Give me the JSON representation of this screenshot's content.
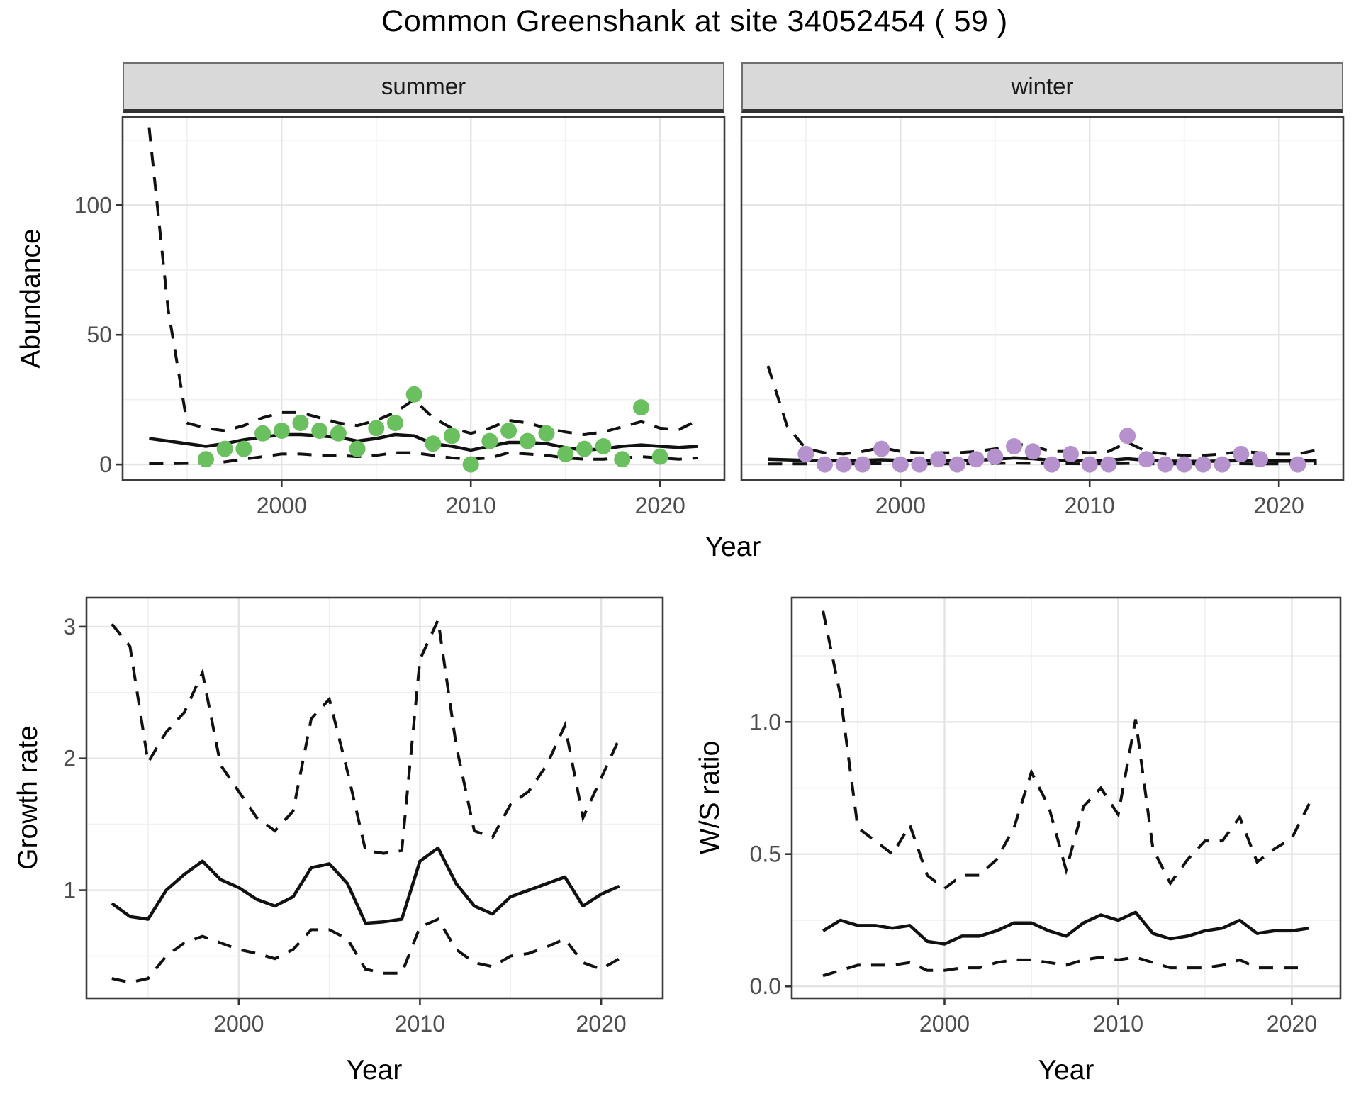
{
  "title": "Common Greenshank at site 34052454 ( 59 )",
  "facets": [
    "summer",
    "winter"
  ],
  "axis_titles": {
    "abundance": "Abundance",
    "growth": "Growth rate",
    "ws": "W/S ratio",
    "year": "Year"
  },
  "colors": {
    "summer_point": "#6abf5f",
    "winter_point": "#b592cd",
    "line": "#111111",
    "grid_major": "#e4e4e4",
    "grid_minor": "#f1f1f1",
    "panel_border": "#3c3c3c",
    "tick_mark": "#333333",
    "tick_label": "#4d4d4d",
    "panel_bg": "#ffffff"
  },
  "chart_data": [
    {
      "id": "summer_abundance",
      "type": "scatter",
      "facet": "summer",
      "xlabel": "Year",
      "ylabel": "Abundance",
      "xlim": [
        1991.6,
        2023.4
      ],
      "ylim": [
        -6,
        134
      ],
      "xticks": {
        "values": [
          2000,
          2010,
          2020
        ],
        "labels": [
          "2000",
          "2010",
          "2020"
        ]
      },
      "yticks": {
        "values": [
          0,
          50,
          100
        ],
        "labels": [
          "0",
          "50",
          "100"
        ]
      },
      "xminor": [
        1995,
        2005,
        2015
      ],
      "yminor": [
        25,
        75,
        125
      ],
      "point_color": "#6abf5f",
      "points": {
        "x": [
          1996,
          1997,
          1998,
          1999,
          2000,
          2001,
          2002,
          2003,
          2004,
          2005,
          2006,
          2007,
          2008,
          2009,
          2010,
          2011,
          2012,
          2013,
          2014,
          2015,
          2016,
          2017,
          2018,
          2019,
          2020
        ],
        "y": [
          2,
          6,
          6,
          12,
          13,
          16,
          13,
          12,
          6,
          14,
          16,
          27,
          8,
          11,
          0,
          9,
          13,
          9,
          12,
          4,
          6,
          7,
          2,
          22,
          3
        ]
      },
      "lines": {
        "x": [
          1993,
          1994,
          1995,
          1996,
          1997,
          1998,
          1999,
          2000,
          2001,
          2002,
          2003,
          2004,
          2005,
          2006,
          2007,
          2008,
          2009,
          2010,
          2011,
          2012,
          2013,
          2014,
          2015,
          2016,
          2017,
          2018,
          2019,
          2020,
          2021,
          2022
        ],
        "median": [
          10,
          9,
          8,
          7,
          8,
          9.5,
          10.5,
          11.5,
          11.5,
          11,
          10.5,
          9,
          10,
          11.5,
          11,
          8,
          7,
          5.5,
          7,
          8.5,
          8.5,
          8,
          6.5,
          5.5,
          6,
          7,
          7.5,
          7,
          6.5,
          7
        ],
        "upper": [
          130,
          60,
          16,
          14,
          13,
          15,
          18,
          20,
          20,
          18,
          16,
          15,
          17,
          20,
          25,
          18,
          14,
          12,
          14,
          17,
          16,
          14,
          12.5,
          11.5,
          12.5,
          14.5,
          16.5,
          14,
          13.5,
          17
        ],
        "lower": [
          0.3,
          0.3,
          0.4,
          0.5,
          1,
          2,
          3,
          4,
          4,
          3.5,
          3.5,
          3,
          3.5,
          4.5,
          4.5,
          3.5,
          2.5,
          2,
          2.5,
          4.5,
          4,
          3.5,
          2.5,
          2,
          2,
          2.5,
          3,
          2.5,
          2,
          2.5
        ]
      }
    },
    {
      "id": "winter_abundance",
      "type": "scatter",
      "facet": "winter",
      "xlabel": "Year",
      "ylabel": "Abundance",
      "xlim": [
        1991.6,
        2023.4
      ],
      "ylim": [
        -6,
        134
      ],
      "xticks": {
        "values": [
          2000,
          2010,
          2020
        ],
        "labels": [
          "2000",
          "2010",
          "2020"
        ]
      },
      "yticks": {
        "values": [
          0,
          50,
          100
        ],
        "labels": [
          "0",
          "50",
          "100"
        ]
      },
      "xminor": [
        1995,
        2005,
        2015
      ],
      "yminor": [
        25,
        75,
        125
      ],
      "point_color": "#b592cd",
      "points": {
        "x": [
          1995,
          1996,
          1997,
          1998,
          1999,
          2000,
          2001,
          2002,
          2003,
          2004,
          2005,
          2006,
          2007,
          2008,
          2009,
          2010,
          2011,
          2012,
          2013,
          2014,
          2015,
          2016,
          2017,
          2018,
          2019,
          2021
        ],
        "y": [
          4,
          0,
          0,
          0,
          6,
          0,
          0,
          2,
          0,
          2,
          3,
          7,
          5,
          0,
          4,
          0,
          0,
          11,
          2,
          0,
          0,
          0,
          0,
          4,
          2,
          0
        ]
      },
      "lines": {
        "x": [
          1993,
          1994,
          1995,
          1996,
          1997,
          1998,
          1999,
          2000,
          2001,
          2002,
          2003,
          2004,
          2005,
          2006,
          2007,
          2008,
          2009,
          2010,
          2011,
          2012,
          2013,
          2014,
          2015,
          2016,
          2017,
          2018,
          2019,
          2020,
          2021,
          2022
        ],
        "median": [
          2,
          1.8,
          1.6,
          1.4,
          1.4,
          1.6,
          1.8,
          1.6,
          1.5,
          1.5,
          1.5,
          1.6,
          2,
          2.5,
          2.2,
          1.6,
          1.6,
          1.5,
          1.6,
          2.2,
          1.6,
          1.3,
          1.2,
          1.2,
          1.3,
          1.5,
          1.4,
          1.3,
          1.3,
          1.4
        ],
        "upper": [
          38,
          15,
          6,
          4.5,
          4,
          5,
          6.5,
          5,
          4.5,
          4.5,
          4.5,
          5,
          6,
          8,
          7,
          5,
          5,
          4.5,
          5,
          8.5,
          5,
          4,
          3.5,
          3.5,
          4,
          5,
          4.5,
          4,
          4,
          5.5
        ],
        "lower": [
          0.2,
          0.2,
          0.2,
          0.2,
          0.2,
          0.3,
          0.3,
          0.3,
          0.2,
          0.2,
          0.2,
          0.3,
          0.4,
          0.5,
          0.4,
          0.3,
          0.3,
          0.2,
          0.3,
          0.4,
          0.3,
          0.2,
          0.2,
          0.2,
          0.2,
          0.3,
          0.2,
          0.2,
          0.2,
          0.3
        ]
      }
    },
    {
      "id": "growth_rate",
      "type": "line",
      "xlabel": "Year",
      "ylabel": "Growth rate",
      "xlim": [
        1991.6,
        2023.4
      ],
      "ylim": [
        0.18,
        3.22
      ],
      "xticks": {
        "values": [
          2000,
          2010,
          2020
        ],
        "labels": [
          "2000",
          "2010",
          "2020"
        ]
      },
      "yticks": {
        "values": [
          1,
          2,
          3
        ],
        "labels": [
          "1",
          "2",
          "3"
        ]
      },
      "xminor": [
        1995,
        2005,
        2015
      ],
      "yminor": [
        0.5,
        1.5,
        2.5
      ],
      "lines": {
        "x": [
          1993,
          1994,
          1995,
          1996,
          1997,
          1998,
          1999,
          2000,
          2001,
          2002,
          2003,
          2004,
          2005,
          2006,
          2007,
          2008,
          2009,
          2010,
          2011,
          2012,
          2013,
          2014,
          2015,
          2016,
          2017,
          2018,
          2019,
          2020,
          2021
        ],
        "median": [
          0.9,
          0.8,
          0.78,
          1.0,
          1.12,
          1.22,
          1.08,
          1.02,
          0.93,
          0.88,
          0.95,
          1.17,
          1.2,
          1.05,
          0.75,
          0.76,
          0.78,
          1.22,
          1.32,
          1.05,
          0.88,
          0.82,
          0.95,
          1.0,
          1.05,
          1.1,
          0.88,
          0.97,
          1.03
        ],
        "upper": [
          3.02,
          2.85,
          1.97,
          2.2,
          2.35,
          2.65,
          1.95,
          1.75,
          1.55,
          1.45,
          1.6,
          2.3,
          2.45,
          1.9,
          1.3,
          1.28,
          1.3,
          2.75,
          3.05,
          2.1,
          1.45,
          1.4,
          1.65,
          1.75,
          1.95,
          2.25,
          1.55,
          1.85,
          2.15
        ],
        "lower": [
          0.33,
          0.3,
          0.33,
          0.5,
          0.6,
          0.65,
          0.6,
          0.55,
          0.52,
          0.48,
          0.55,
          0.7,
          0.7,
          0.63,
          0.4,
          0.37,
          0.37,
          0.72,
          0.78,
          0.55,
          0.45,
          0.42,
          0.5,
          0.52,
          0.57,
          0.63,
          0.45,
          0.4,
          0.48
        ]
      }
    },
    {
      "id": "ws_ratio",
      "type": "line",
      "xlabel": "Year",
      "ylabel": "W/S ratio",
      "xlim": [
        1991.2,
        2022.8
      ],
      "ylim": [
        -0.045,
        1.47
      ],
      "xticks": {
        "values": [
          2000,
          2010,
          2020
        ],
        "labels": [
          "2000",
          "2010",
          "2020"
        ]
      },
      "yticks": {
        "values": [
          0.0,
          0.5,
          1.0
        ],
        "labels": [
          "0.0",
          "0.5",
          "1.0"
        ]
      },
      "xminor": [
        1995,
        2005,
        2015
      ],
      "yminor": [
        0.25,
        0.75,
        1.25
      ],
      "lines": {
        "x": [
          1993,
          1994,
          1995,
          1996,
          1997,
          1998,
          1999,
          2000,
          2001,
          2002,
          2003,
          2004,
          2005,
          2006,
          2007,
          2008,
          2009,
          2010,
          2011,
          2012,
          2013,
          2014,
          2015,
          2016,
          2017,
          2018,
          2019,
          2020,
          2021
        ],
        "median": [
          0.21,
          0.25,
          0.23,
          0.23,
          0.22,
          0.23,
          0.17,
          0.16,
          0.19,
          0.19,
          0.21,
          0.24,
          0.24,
          0.21,
          0.19,
          0.24,
          0.27,
          0.25,
          0.28,
          0.2,
          0.18,
          0.19,
          0.21,
          0.22,
          0.25,
          0.2,
          0.21,
          0.21,
          0.22
        ],
        "upper": [
          1.42,
          1.1,
          0.6,
          0.55,
          0.5,
          0.61,
          0.42,
          0.37,
          0.42,
          0.42,
          0.48,
          0.6,
          0.81,
          0.68,
          0.44,
          0.68,
          0.75,
          0.65,
          1.01,
          0.52,
          0.39,
          0.48,
          0.55,
          0.55,
          0.64,
          0.47,
          0.52,
          0.56,
          0.69
        ],
        "lower": [
          0.04,
          0.06,
          0.08,
          0.08,
          0.08,
          0.09,
          0.06,
          0.06,
          0.07,
          0.07,
          0.09,
          0.1,
          0.1,
          0.09,
          0.08,
          0.1,
          0.11,
          0.1,
          0.11,
          0.09,
          0.07,
          0.07,
          0.07,
          0.08,
          0.1,
          0.07,
          0.07,
          0.07,
          0.07
        ]
      }
    }
  ]
}
